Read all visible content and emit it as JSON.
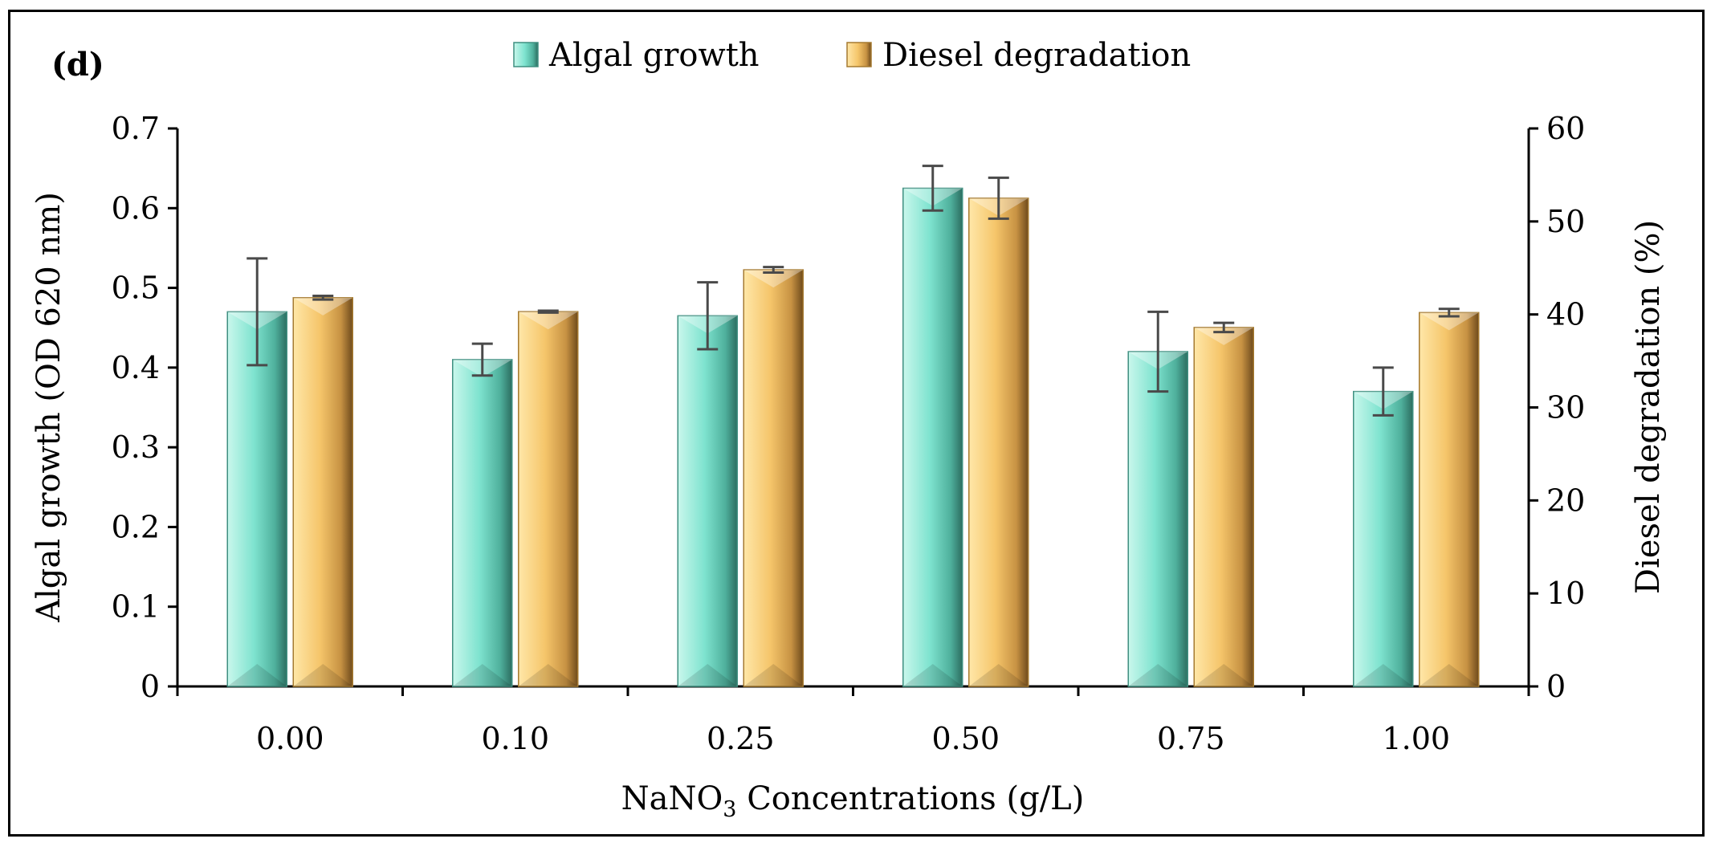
{
  "chart_data": {
    "type": "bar",
    "panel_label": "(d)",
    "xlabel_main": "NaNO",
    "xlabel_sub": "3",
    "xlabel_rest": " Concentrations (g/L)",
    "ylabel_left": "Algal growth (OD 620 nm)",
    "ylabel_right": "Diesel degradation (%)",
    "categories": [
      "0.00",
      "0.10",
      "0.25",
      "0.50",
      "0.75",
      "1.00"
    ],
    "ylim_left": [
      0,
      0.7
    ],
    "ylim_right": [
      0,
      60
    ],
    "yticks_left": [
      "0",
      "0.1",
      "0.2",
      "0.3",
      "0.4",
      "0.5",
      "0.6",
      "0.7"
    ],
    "yticks_right": [
      "0",
      "10",
      "20",
      "30",
      "40",
      "50",
      "60"
    ],
    "series": [
      {
        "name": "Algal growth",
        "axis": "left",
        "color": "#7ee3cf",
        "values": [
          0.47,
          0.41,
          0.465,
          0.625,
          0.42,
          0.37
        ],
        "errors": [
          0.067,
          0.02,
          0.042,
          0.028,
          0.05,
          0.03
        ]
      },
      {
        "name": "Diesel degradation",
        "axis": "right",
        "color": "#f5c56a",
        "values": [
          41.8,
          40.3,
          44.8,
          52.5,
          38.6,
          40.2
        ],
        "errors": [
          0.2,
          0.1,
          0.3,
          2.2,
          0.5,
          0.4
        ]
      }
    ],
    "legend": "top-center",
    "grid": false
  }
}
